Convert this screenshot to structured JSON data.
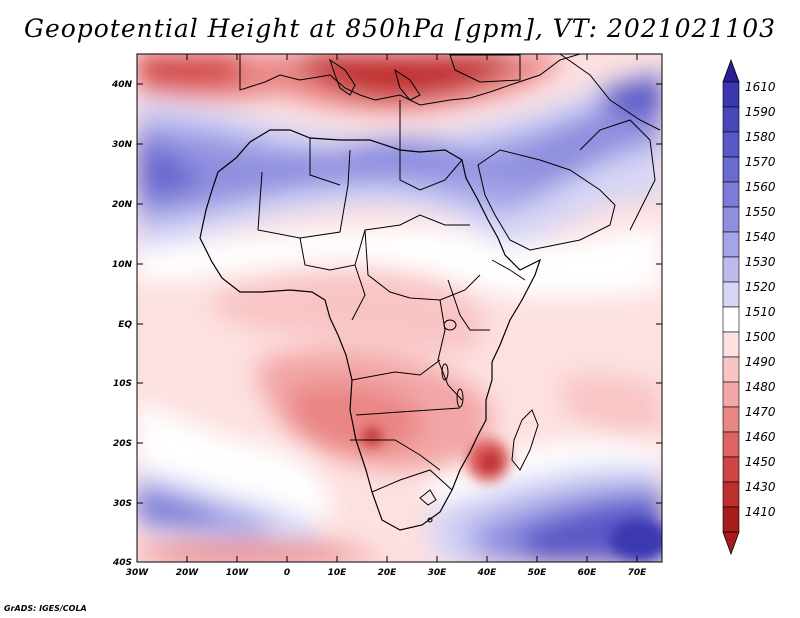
{
  "title": "Geopotential Height at 850hPa [gpm], VT: 2021021103",
  "footer": "GrADS: IGES/COLA",
  "lat_labels": [
    "40N",
    "30N",
    "20N",
    "10N",
    "EQ",
    "10S",
    "20S",
    "30S",
    "40S"
  ],
  "lon_labels": [
    "30W",
    "20W",
    "10W",
    "0",
    "10E",
    "20E",
    "30E",
    "40E",
    "50E",
    "60E",
    "70E"
  ],
  "colorbar": {
    "labels": [
      "1610",
      "1590",
      "1580",
      "1570",
      "1560",
      "1550",
      "1540",
      "1530",
      "1520",
      "1510",
      "1500",
      "1490",
      "1480",
      "1470",
      "1460",
      "1450",
      "1430",
      "1410"
    ],
    "colors": [
      "#3a37b0",
      "#4a47bd",
      "#5a58c6",
      "#6b6acf",
      "#7c7bd7",
      "#8f8edf",
      "#a4a4e7",
      "#bbbbef",
      "#d6d6f6",
      "#ffffff",
      "#fde0e0",
      "#f9c4c4",
      "#f3a6a6",
      "#ea8585",
      "#df6363",
      "#d14444",
      "#bf2d2d",
      "#a81c1c"
    ],
    "top_arrow_color": "#2a1f95",
    "bottom_arrow_color": "#a81c1c"
  },
  "chart_data": {
    "type": "heatmap",
    "title": "Geopotential Height at 850hPa [gpm], VT: 2021021103",
    "variable": "Geopotential Height at 850hPa",
    "units": "gpm",
    "valid_time": "2021021103",
    "lon_range": [
      -30,
      75
    ],
    "lat_range": [
      -40,
      45
    ],
    "colorbar_levels": [
      1410,
      1430,
      1450,
      1460,
      1470,
      1480,
      1490,
      1500,
      1510,
      1520,
      1530,
      1540,
      1550,
      1560,
      1570,
      1580,
      1590,
      1610
    ]
  }
}
